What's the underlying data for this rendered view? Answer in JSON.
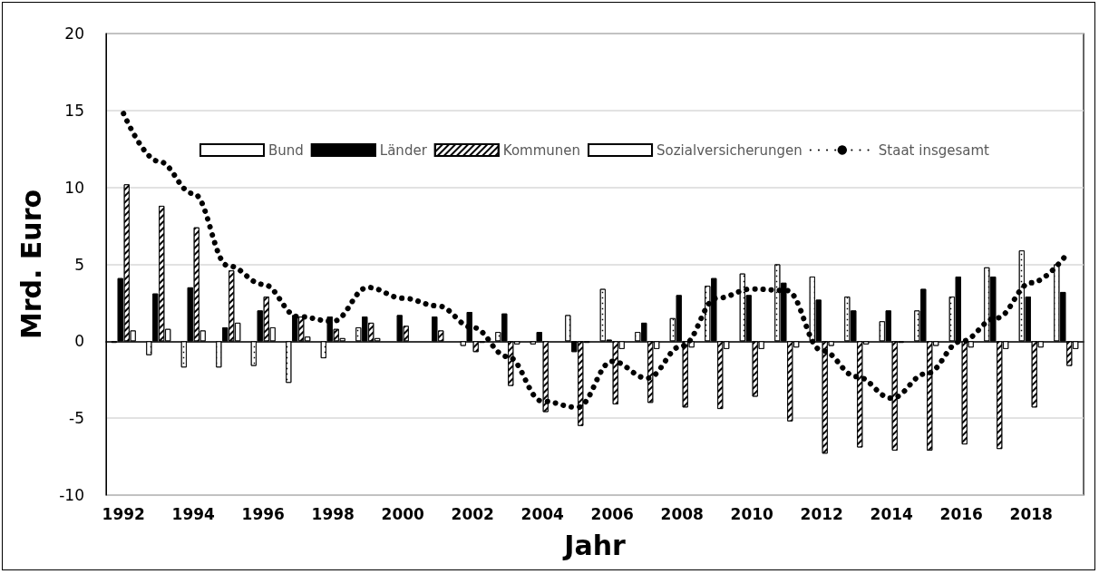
{
  "chart_data": {
    "type": "bar",
    "xlabel": "Jahr",
    "ylabel": "Mrd. Euro",
    "categories": [
      "1992",
      null,
      "1994",
      null,
      "1996",
      null,
      "1998",
      null,
      "2000",
      null,
      "2002",
      null,
      "2004",
      null,
      "2006",
      null,
      "2008",
      null,
      "2010",
      null,
      "2012",
      null,
      "2014",
      null,
      "2016",
      null,
      "2018",
      null
    ],
    "series": [
      {
        "name": "Bund",
        "color": "#ffffff",
        "values": [
          -0.1,
          -0.9,
          -1.7,
          -1.7,
          -1.6,
          -2.7,
          -1.1,
          0.9,
          null,
          null,
          -0.3,
          0.6,
          -0.2,
          1.7,
          3.4,
          0.6,
          1.5,
          3.6,
          4.4,
          5.0,
          4.2,
          2.9,
          1.3,
          2.0,
          2.9,
          4.8,
          5.9,
          5.0
        ]
      },
      {
        "name": "Länder",
        "color": "#000000",
        "values": [
          4.1,
          3.1,
          3.5,
          0.9,
          2.0,
          1.7,
          1.6,
          1.6,
          1.7,
          1.6,
          1.9,
          1.8,
          0.6,
          -0.7,
          0.1,
          1.2,
          3.0,
          4.1,
          3.0,
          3.8,
          2.7,
          2.0,
          2.0,
          3.4,
          4.2,
          4.2,
          2.9,
          3.2
        ]
      },
      {
        "name": "Kommunen",
        "color": "#ffffff",
        "values": [
          10.2,
          8.8,
          7.4,
          4.6,
          2.9,
          1.6,
          0.8,
          1.2,
          1.0,
          0.7,
          -0.7,
          -2.9,
          -4.6,
          -5.5,
          -4.1,
          -4.0,
          -4.3,
          -4.4,
          -3.6,
          -5.2,
          -7.3,
          -6.9,
          -7.1,
          -7.1,
          -6.7,
          -7.0,
          -4.3,
          -1.6
        ]
      },
      {
        "name": "Sozialversicherungen",
        "color": "#ffffff",
        "values": [
          0.7,
          0.8,
          0.7,
          1.2,
          0.9,
          0.3,
          0.2,
          0.2,
          null,
          null,
          -0.1,
          -0.2,
          0.0,
          -0.1,
          -0.5,
          -0.5,
          -0.4,
          -0.5,
          -0.5,
          -0.4,
          -0.3,
          -0.2,
          -0.1,
          -0.3,
          -0.4,
          -0.5,
          -0.4,
          -0.5
        ]
      },
      {
        "name": "Staat insgesamt",
        "type": "line",
        "color": "#000000",
        "line_style": "dotted",
        "marker": "none",
        "values": [
          14.8,
          11.7,
          9.6,
          4.9,
          3.7,
          1.6,
          1.3,
          3.5,
          2.8,
          2.3,
          0.9,
          -1.0,
          -3.9,
          -4.3,
          -1.3,
          -2.4,
          -0.3,
          2.8,
          3.4,
          3.3,
          -0.6,
          -2.3,
          -3.7,
          -2.1,
          0.0,
          1.5,
          3.8,
          5.6
        ]
      }
    ],
    "ylim": [
      -10,
      20
    ],
    "yticks": [
      -10,
      -5,
      0,
      5,
      10,
      15,
      20
    ],
    "grid": "y",
    "legend": "top"
  }
}
